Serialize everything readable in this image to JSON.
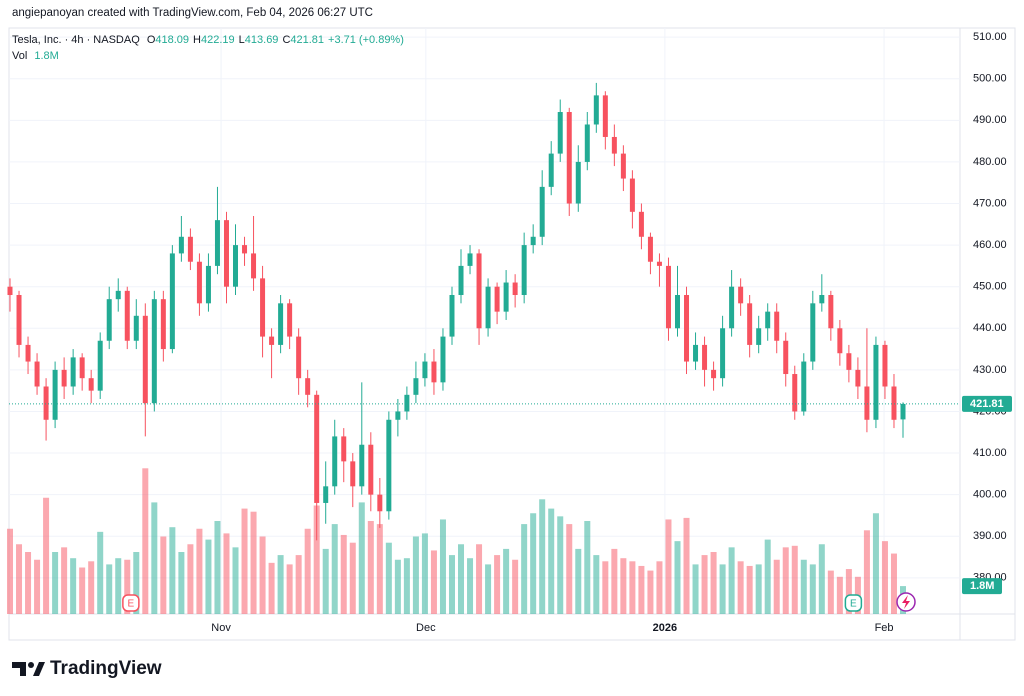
{
  "chart_data": {
    "type": "candlestick",
    "attribution": "angiepanoyan created with TradingView.com, Feb 04, 2026 06:27 UTC",
    "symbol": "Tesla, Inc. · 4h · NASDAQ",
    "ohlc": [
      {
        "label": "O",
        "value": 418.09
      },
      {
        "label": "H",
        "value": 422.19
      },
      {
        "label": "L",
        "value": 413.69
      },
      {
        "label": "C",
        "value": 421.81
      }
    ],
    "change": "+3.71 (+0.89%)",
    "volume_label": "Vol",
    "volume_value": "1.8M",
    "last_price": 421.81,
    "brand": "TradingView",
    "up_color": "#22ab94",
    "down_color": "#f7525f",
    "open": [
      450,
      448,
      436,
      432,
      426,
      418,
      430,
      426,
      433,
      428,
      425,
      437,
      447,
      449,
      437,
      443,
      422,
      447,
      435,
      458,
      462,
      456,
      446,
      455,
      466,
      450,
      460,
      458,
      452,
      438,
      436,
      446,
      438,
      428,
      424,
      398,
      402,
      414,
      408,
      402,
      412,
      400,
      396,
      418,
      420,
      424,
      428,
      432,
      427,
      438,
      448,
      455,
      458,
      440,
      450,
      444,
      451,
      448,
      460,
      462,
      474,
      482,
      492,
      470,
      480,
      489,
      496,
      486,
      482,
      476,
      468,
      462,
      456,
      455,
      440,
      448,
      432,
      436,
      430,
      428,
      440,
      450,
      446,
      436,
      440,
      444,
      437,
      429,
      420,
      432,
      446,
      448,
      440,
      434,
      430,
      426,
      418,
      436,
      426,
      418.09
    ],
    "high": [
      452,
      449,
      438,
      434,
      428,
      432,
      433,
      435,
      434,
      430,
      439,
      450,
      452,
      450,
      447,
      446,
      449,
      449,
      460,
      467,
      464,
      458,
      458,
      474,
      468,
      465,
      462,
      467,
      455,
      440,
      448,
      447,
      440,
      430,
      425,
      408,
      418,
      416,
      410,
      427,
      415,
      404,
      420,
      423,
      426,
      432,
      434,
      435,
      440,
      450,
      459,
      460,
      459,
      452,
      451,
      454,
      453,
      463,
      465,
      478,
      485,
      495,
      493,
      484,
      492,
      499,
      497,
      489,
      484,
      478,
      470,
      463,
      458,
      457,
      455,
      450,
      439,
      438,
      432,
      443,
      454,
      452,
      448,
      443,
      446,
      446,
      439,
      431,
      434,
      449,
      453,
      449,
      442,
      436,
      433,
      440,
      438,
      437,
      429,
      422.19
    ],
    "low": [
      444,
      433,
      429,
      424,
      413,
      416,
      423,
      424,
      425,
      422,
      423,
      435,
      444,
      435,
      435,
      414,
      420,
      432,
      434,
      456,
      454,
      443,
      444,
      453,
      446,
      448,
      455,
      449,
      433,
      428,
      434,
      435,
      424,
      421,
      389,
      393,
      400,
      403,
      397,
      400,
      396,
      392,
      394,
      414,
      418,
      422,
      426,
      424,
      425,
      436,
      446,
      453,
      436,
      438,
      441,
      442,
      445,
      446,
      458,
      460,
      472,
      480,
      467,
      468,
      478,
      487,
      483,
      479,
      473,
      464,
      459,
      453,
      450,
      437,
      438,
      429,
      430,
      426,
      425,
      426,
      438,
      443,
      433,
      434,
      437,
      434,
      426,
      418,
      419,
      430,
      444,
      437,
      431,
      427,
      423,
      415,
      416,
      423,
      416,
      413.69
    ],
    "close": [
      448,
      436,
      432,
      426,
      418,
      430,
      426,
      433,
      428,
      425,
      437,
      447,
      449,
      437,
      443,
      422,
      447,
      435,
      458,
      462,
      456,
      446,
      455,
      466,
      450,
      460,
      458,
      452,
      438,
      436,
      446,
      438,
      428,
      424,
      398,
      402,
      414,
      408,
      402,
      412,
      400,
      396,
      418,
      420,
      424,
      428,
      432,
      427,
      438,
      448,
      455,
      458,
      440,
      450,
      444,
      451,
      448,
      460,
      462,
      474,
      482,
      492,
      470,
      480,
      489,
      496,
      486,
      482,
      476,
      468,
      462,
      456,
      455,
      440,
      448,
      432,
      436,
      430,
      428,
      440,
      450,
      446,
      436,
      440,
      444,
      437,
      429,
      420,
      432,
      446,
      448,
      440,
      434,
      430,
      426,
      418,
      436,
      426,
      418,
      421.81
    ],
    "volume": [
      5.5,
      4.5,
      4,
      3.5,
      7.5,
      4,
      4.3,
      3.6,
      3,
      3.4,
      5.3,
      3.2,
      3.6,
      3.5,
      4,
      9.4,
      7.2,
      5,
      5.6,
      4,
      4.5,
      5.5,
      4.8,
      6,
      5.2,
      4.3,
      6.8,
      6.6,
      5,
      3.3,
      3.8,
      3.2,
      3.8,
      5.5,
      7,
      4.2,
      5.8,
      5.1,
      4.6,
      7.2,
      6,
      5.8,
      4.6,
      3.5,
      3.6,
      5,
      5.2,
      4.1,
      6.1,
      3.8,
      4.5,
      3.6,
      4.5,
      3.2,
      3.8,
      4.2,
      3.5,
      5.8,
      6.5,
      7.4,
      6.8,
      6.3,
      5.8,
      4.2,
      6,
      3.8,
      3.4,
      4.2,
      3.6,
      3.4,
      3.1,
      2.8,
      3.4,
      6.1,
      4.7,
      6.2,
      3.2,
      3.8,
      4,
      3.2,
      4.3,
      3.4,
      3.1,
      3.2,
      4.8,
      3.5,
      4.3,
      4.4,
      3.5,
      3.2,
      4.5,
      2.8,
      2.4,
      2.9,
      2.4,
      5.4,
      6.5,
      4.7,
      3.9,
      1.8
    ],
    "ylim": [
      371.3,
      512.2
    ],
    "yticks": [
      {
        "value": 380,
        "label": "380.00"
      },
      {
        "value": 390,
        "label": "390.00"
      },
      {
        "value": 400,
        "label": "400.00"
      },
      {
        "value": 410,
        "label": "410.00"
      },
      {
        "value": 420,
        "label": "420.00"
      },
      {
        "value": 430,
        "label": "430.00"
      },
      {
        "value": 440,
        "label": "440.00"
      },
      {
        "value": 450,
        "label": "450.00"
      },
      {
        "value": 460,
        "label": "460.00"
      },
      {
        "value": 470,
        "label": "470.00"
      },
      {
        "value": 480,
        "label": "480.00"
      },
      {
        "value": 490,
        "label": "490.00"
      },
      {
        "value": 500,
        "label": "500.00"
      },
      {
        "value": 510,
        "label": "510.00"
      }
    ],
    "volume_lim": [
      0,
      12
    ],
    "xticks": [
      {
        "value": 23.4,
        "label": "Nov"
      },
      {
        "value": 46.1,
        "label": "Dec"
      },
      {
        "value": 72.6,
        "label": "2026"
      },
      {
        "value": 96.9,
        "label": "Feb"
      }
    ],
    "events": [
      {
        "value": 13.4,
        "label": "E",
        "color": "#f7525f"
      },
      {
        "value": 93.5,
        "label": "E",
        "color": "#22ab94"
      }
    ],
    "grid": true
  }
}
